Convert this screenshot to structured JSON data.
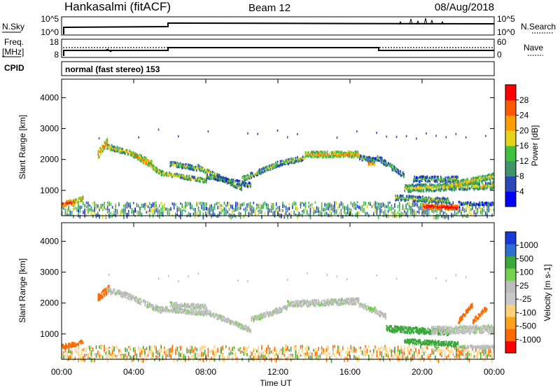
{
  "header": {
    "station": "Hankasalmi (fitACF)",
    "beam": "Beam 12",
    "date": "08/Aug/2018"
  },
  "strips": {
    "noise": {
      "left_label": "N.Sky",
      "left_ticks": [
        "10^5",
        "10^0"
      ],
      "right_label": "N.Search",
      "right_ticks": [
        "10^5",
        "10^0"
      ]
    },
    "freq": {
      "left_label_1": "Freq.",
      "left_label_2": "[MHz]",
      "left_ticks": [
        "18",
        "8"
      ],
      "right_label": "Nave",
      "right_ticks": [
        "60",
        "0"
      ]
    },
    "cpid": {
      "label": "CPID",
      "text": "normal (fast stereo) 153"
    }
  },
  "colors": {
    "power": [
      "#0000ff",
      "#2b48b8",
      "#3f9468",
      "#3fc23f",
      "#e8d21a",
      "#ff9d00",
      "#ff5a00",
      "#ff0000"
    ],
    "velocity": [
      "#ff0000",
      "#ff6a00",
      "#ffa21a",
      "#ffd27a",
      "#c8c8c8",
      "#bcbcbc",
      "#73d24a",
      "#3aa83a",
      "#2e6fd0",
      "#1a3ad8"
    ],
    "ground_scatter": "#bebebe"
  },
  "chart_data": [
    {
      "type": "heatmap",
      "panel": "power",
      "ylabel": "Slant Range [km]",
      "yticks": [
        1000,
        2000,
        3000,
        4000
      ],
      "ylim": [
        180,
        4600
      ],
      "xlim": [
        0,
        24
      ],
      "colorbar_label": "Power [dB]",
      "colorbar_ticks": [
        4,
        8,
        12,
        16,
        20,
        24,
        28
      ],
      "colorbar_range": [
        0,
        32
      ],
      "segments": [
        [
          0.0,
          600,
          0.6,
          650,
          160,
          26
        ],
        [
          0.6,
          650,
          1.2,
          780,
          140,
          20
        ],
        [
          2.0,
          2200,
          2.5,
          2600,
          240,
          20
        ],
        [
          2.5,
          2450,
          3.5,
          2300,
          180,
          14
        ],
        [
          3.5,
          2300,
          5.0,
          1950,
          160,
          16
        ],
        [
          4.0,
          2200,
          5.5,
          1600,
          150,
          18
        ],
        [
          5.5,
          1600,
          8.0,
          1350,
          130,
          14
        ],
        [
          6.0,
          1900,
          7.5,
          1750,
          150,
          12
        ],
        [
          7.5,
          1800,
          10.0,
          1100,
          150,
          14
        ],
        [
          8.0,
          1500,
          10.5,
          1200,
          140,
          10
        ],
        [
          10.0,
          1400,
          12.0,
          1900,
          170,
          12
        ],
        [
          12.0,
          1900,
          13.5,
          2100,
          170,
          12
        ],
        [
          13.5,
          2200,
          16.5,
          2200,
          190,
          18
        ],
        [
          16.5,
          2100,
          17.5,
          2000,
          150,
          10
        ],
        [
          17.0,
          1900,
          17.4,
          1900,
          80,
          22
        ],
        [
          17.5,
          2100,
          19.0,
          1500,
          160,
          10
        ],
        [
          19.5,
          1400,
          22.0,
          1400,
          170,
          10
        ],
        [
          19.0,
          1100,
          24.0,
          1200,
          230,
          14
        ],
        [
          21.5,
          1200,
          24.0,
          1500,
          190,
          16
        ],
        [
          18.5,
          800,
          21.5,
          700,
          170,
          12
        ],
        [
          20.0,
          520,
          22.0,
          480,
          150,
          28
        ],
        [
          22.0,
          620,
          24.0,
          600,
          90,
          8
        ]
      ],
      "scatter_band": [
        0.0,
        24.0,
        200,
        650,
        8
      ],
      "speckles": [
        1.5,
        24.0,
        2700,
        3000,
        4
      ]
    },
    {
      "type": "heatmap",
      "panel": "velocity",
      "ylabel": "Slant Range [km]",
      "yticks": [
        1000,
        2000,
        3000,
        4000
      ],
      "ylim": [
        180,
        4600
      ],
      "xlim": [
        0,
        24
      ],
      "xticks": [
        "00:00",
        "04:00",
        "08:00",
        "12:00",
        "16:00",
        "20:00",
        "00:00"
      ],
      "xlabel": "Time UT",
      "colorbar_label": "Velocity [m s-1]",
      "colorbar_ticks": [
        "1000",
        "500",
        "100",
        "25",
        "-25",
        "-100",
        "-500",
        "-1000"
      ],
      "segments": [
        [
          0.0,
          620,
          0.6,
          680,
          150,
          -200
        ],
        [
          0.6,
          680,
          1.2,
          800,
          130,
          -150
        ],
        [
          2.0,
          2200,
          2.6,
          2500,
          220,
          -300
        ],
        [
          2.5,
          2450,
          3.5,
          2300,
          180,
          0
        ],
        [
          3.5,
          2300,
          5.5,
          1800,
          170,
          0
        ],
        [
          5.5,
          1850,
          8.0,
          1700,
          150,
          0
        ],
        [
          6.0,
          2000,
          8.0,
          1900,
          150,
          0
        ],
        [
          8.0,
          1750,
          10.5,
          1150,
          150,
          0
        ],
        [
          10.5,
          1500,
          12.5,
          1900,
          160,
          0
        ],
        [
          12.5,
          2000,
          16.5,
          2100,
          190,
          0
        ],
        [
          16.5,
          2000,
          18.0,
          1600,
          150,
          0
        ],
        [
          17.0,
          1850,
          17.4,
          1850,
          90,
          80
        ],
        [
          18.0,
          1200,
          21.5,
          1100,
          200,
          120
        ],
        [
          19.0,
          800,
          22.0,
          700,
          150,
          120
        ],
        [
          20.5,
          1150,
          24.0,
          1200,
          250,
          0
        ],
        [
          22.0,
          1450,
          22.8,
          2000,
          140,
          -400
        ],
        [
          22.8,
          1450,
          23.6,
          1900,
          140,
          -500
        ],
        [
          22.0,
          600,
          24.0,
          620,
          100,
          0
        ]
      ],
      "scatter_band": [
        0.0,
        24.0,
        200,
        650,
        -25
      ],
      "speckles": [
        1.5,
        24.0,
        2700,
        3000,
        0
      ]
    }
  ]
}
